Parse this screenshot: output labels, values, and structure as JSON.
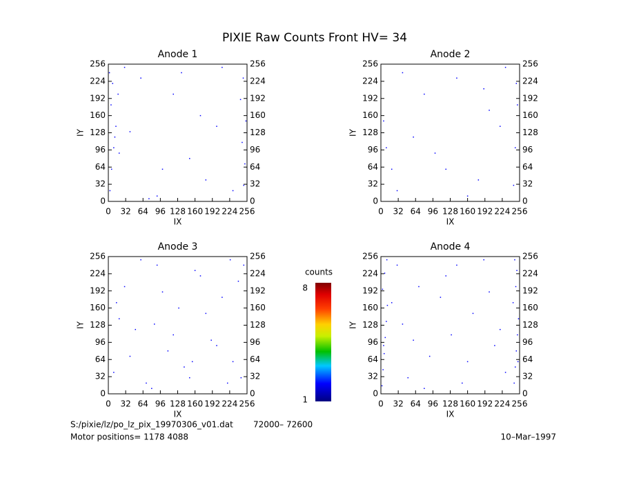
{
  "title": "PIXIE Raw Counts Front HV= 34",
  "chart_data": [
    {
      "type": "scatter",
      "title": "Anode 1",
      "x_label": "IX",
      "y_label": "IY",
      "color": "#0000ff",
      "xlim": [
        0,
        256
      ],
      "ylim": [
        0,
        256
      ],
      "xticks": [
        0,
        32,
        64,
        96,
        128,
        160,
        192,
        224,
        256
      ],
      "yticks": [
        0,
        32,
        64,
        96,
        128,
        160,
        192,
        224,
        256
      ],
      "x": [
        3,
        6,
        10,
        14,
        5,
        8,
        2,
        12,
        250,
        252,
        247,
        254,
        244,
        249,
        30,
        60,
        90,
        120,
        150,
        180,
        210,
        40,
        100,
        170,
        230,
        20,
        75,
        135,
        200,
        18
      ],
      "y": [
        20,
        60,
        100,
        140,
        180,
        220,
        240,
        120,
        30,
        70,
        110,
        150,
        190,
        230,
        250,
        230,
        10,
        200,
        80,
        40,
        250,
        130,
        60,
        160,
        20,
        90,
        5,
        240,
        140,
        200
      ]
    },
    {
      "type": "scatter",
      "title": "Anode 2",
      "x_label": "IX",
      "y_label": "IY",
      "color": "#0000ff",
      "xlim": [
        0,
        256
      ],
      "ylim": [
        0,
        256
      ],
      "xticks": [
        0,
        32,
        64,
        96,
        128,
        160,
        192,
        224,
        256
      ],
      "yticks": [
        0,
        32,
        64,
        96,
        128,
        160,
        192,
        224,
        256
      ],
      "x": [
        5,
        10,
        250,
        245,
        252,
        40,
        80,
        120,
        160,
        200,
        230,
        60,
        100,
        140,
        180,
        220,
        20,
        248,
        30,
        190
      ],
      "y": [
        150,
        100,
        220,
        30,
        180,
        240,
        200,
        60,
        10,
        170,
        250,
        120,
        90,
        230,
        40,
        140,
        60,
        100,
        20,
        210
      ]
    },
    {
      "type": "scatter",
      "title": "Anode 3",
      "x_label": "IX",
      "y_label": "IY",
      "color": "#0000ff",
      "xlim": [
        0,
        256
      ],
      "ylim": [
        0,
        256
      ],
      "xticks": [
        0,
        32,
        64,
        96,
        128,
        160,
        192,
        224,
        256
      ],
      "yticks": [
        0,
        32,
        64,
        96,
        128,
        160,
        192,
        224,
        256
      ],
      "x": [
        10,
        30,
        50,
        70,
        90,
        110,
        130,
        150,
        170,
        190,
        210,
        230,
        250,
        20,
        40,
        60,
        80,
        100,
        120,
        140,
        160,
        180,
        200,
        220,
        240,
        15,
        85,
        155,
        225,
        245
      ],
      "y": [
        40,
        200,
        120,
        20,
        240,
        80,
        160,
        30,
        220,
        100,
        180,
        60,
        240,
        140,
        70,
        250,
        10,
        190,
        110,
        50,
        230,
        150,
        90,
        20,
        210,
        170,
        130,
        60,
        250,
        30
      ]
    },
    {
      "type": "scatter",
      "title": "Anode 4",
      "x_label": "IX",
      "y_label": "IY",
      "color": "#0000ff",
      "xlim": [
        0,
        256
      ],
      "ylim": [
        0,
        256
      ],
      "xticks": [
        0,
        32,
        64,
        96,
        128,
        160,
        192,
        224,
        256
      ],
      "yticks": [
        0,
        32,
        64,
        96,
        128,
        160,
        192,
        224,
        256
      ],
      "x": [
        2,
        4,
        6,
        8,
        10,
        12,
        3,
        7,
        11,
        5,
        246,
        248,
        250,
        252,
        254,
        244,
        249,
        251,
        247,
        253,
        30,
        50,
        70,
        90,
        110,
        130,
        150,
        170,
        190,
        210,
        230,
        40,
        80,
        120,
        160,
        200,
        20,
        60,
        140,
        220
      ],
      "y": [
        15,
        45,
        75,
        105,
        135,
        165,
        195,
        225,
        250,
        90,
        20,
        50,
        80,
        110,
        140,
        170,
        200,
        230,
        250,
        60,
        240,
        30,
        200,
        70,
        180,
        110,
        20,
        150,
        250,
        90,
        40,
        130,
        10,
        220,
        60,
        190,
        170,
        100,
        240,
        120
      ]
    }
  ],
  "colorbar": {
    "label": "counts",
    "lim": [
      1,
      8
    ],
    "ticks": [
      1,
      8
    ]
  },
  "footer": {
    "file": "S:/pixie/lz/po_lz_pix_19970306_v01.dat",
    "range": "72000– 72600",
    "motor": "Motor positions= 1178 4088",
    "date": "10–Mar–1997"
  }
}
